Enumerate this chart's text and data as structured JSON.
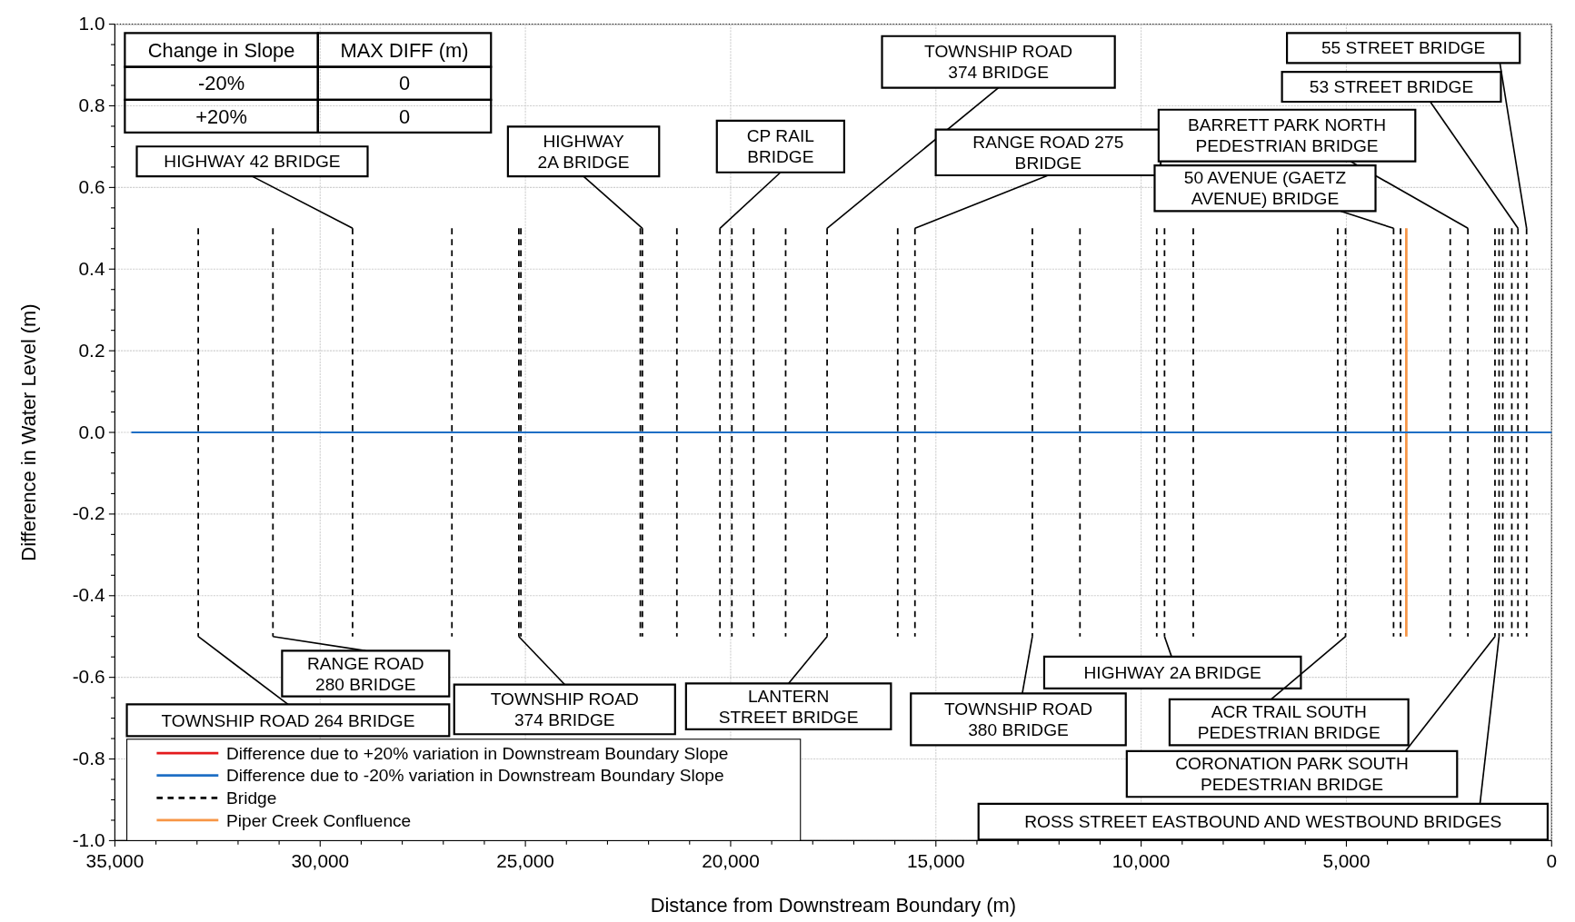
{
  "chart_data": {
    "type": "line",
    "xlabel": "Distance from Downstream Boundary (m)",
    "ylabel": "Difference in Water Level (m)",
    "xlim": [
      35000,
      0
    ],
    "ylim": [
      -1,
      1
    ],
    "xticks": [
      {
        "value": 35000,
        "label": "35,000"
      },
      {
        "value": 30000,
        "label": "30,000"
      },
      {
        "value": 25000,
        "label": "25,000"
      },
      {
        "value": 20000,
        "label": "20,000"
      },
      {
        "value": 15000,
        "label": "15,000"
      },
      {
        "value": 10000,
        "label": "10,000"
      },
      {
        "value": 5000,
        "label": "5,000"
      },
      {
        "value": 0,
        "label": "0"
      },
      {
        "value": 34000,
        "label": null
      },
      {
        "value": 33000,
        "label": null
      },
      {
        "value": 32000,
        "label": null
      },
      {
        "value": 31000,
        "label": null
      },
      {
        "value": 29000,
        "label": null
      },
      {
        "value": 28000,
        "label": null
      },
      {
        "value": 27000,
        "label": null
      },
      {
        "value": 26000,
        "label": null
      },
      {
        "value": 24000,
        "label": null
      },
      {
        "value": 23000,
        "label": null
      },
      {
        "value": 22000,
        "label": null
      },
      {
        "value": 21000,
        "label": null
      },
      {
        "value": 19000,
        "label": null
      },
      {
        "value": 18000,
        "label": null
      },
      {
        "value": 17000,
        "label": null
      },
      {
        "value": 16000,
        "label": null
      },
      {
        "value": 14000,
        "label": null
      },
      {
        "value": 13000,
        "label": null
      },
      {
        "value": 12000,
        "label": null
      },
      {
        "value": 11000,
        "label": null
      },
      {
        "value": 9000,
        "label": null
      },
      {
        "value": 8000,
        "label": null
      },
      {
        "value": 7000,
        "label": null
      },
      {
        "value": 6000,
        "label": null
      },
      {
        "value": 4000,
        "label": null
      },
      {
        "value": 3000,
        "label": null
      },
      {
        "value": 2000,
        "label": null
      },
      {
        "value": 1000,
        "label": null
      }
    ],
    "yticks": [
      {
        "value": -1,
        "label": "-1.0"
      },
      {
        "value": -0.8,
        "label": "-0.8"
      },
      {
        "value": -0.6,
        "label": "-0.6"
      },
      {
        "value": -0.4,
        "label": "-0.4"
      },
      {
        "value": -0.2,
        "label": "-0.2"
      },
      {
        "value": 0,
        "label": "0.0"
      },
      {
        "value": 0.2,
        "label": "0.2"
      },
      {
        "value": 0.4,
        "label": "0.4"
      },
      {
        "value": 0.6,
        "label": "0.6"
      },
      {
        "value": 0.8,
        "label": "0.8"
      },
      {
        "value": 1,
        "label": "1.0"
      },
      {
        "value": -0.95,
        "label": null
      },
      {
        "value": -0.9,
        "label": null
      },
      {
        "value": -0.85,
        "label": null
      },
      {
        "value": -0.75,
        "label": null
      },
      {
        "value": -0.7,
        "label": null
      },
      {
        "value": -0.65,
        "label": null
      },
      {
        "value": -0.55,
        "label": null
      },
      {
        "value": -0.5,
        "label": null
      },
      {
        "value": -0.45,
        "label": null
      },
      {
        "value": -0.35,
        "label": null
      },
      {
        "value": -0.3,
        "label": null
      },
      {
        "value": -0.25,
        "label": null
      },
      {
        "value": -0.15,
        "label": null
      },
      {
        "value": -0.1,
        "label": null
      },
      {
        "value": -0.05,
        "label": null
      },
      {
        "value": 0.05,
        "label": null
      },
      {
        "value": 0.1,
        "label": null
      },
      {
        "value": 0.15,
        "label": null
      },
      {
        "value": 0.25,
        "label": null
      },
      {
        "value": 0.3,
        "label": null
      },
      {
        "value": 0.35,
        "label": null
      },
      {
        "value": 0.45,
        "label": null
      },
      {
        "value": 0.5,
        "label": null
      },
      {
        "value": 0.55,
        "label": null
      },
      {
        "value": 0.65,
        "label": null
      },
      {
        "value": 0.7,
        "label": null
      },
      {
        "value": 0.75,
        "label": null
      },
      {
        "value": 0.85,
        "label": null
      },
      {
        "value": 0.9,
        "label": null
      },
      {
        "value": 0.95,
        "label": null
      }
    ],
    "x": [
      34600,
      0
    ],
    "grid": true,
    "legend": "bottom left",
    "line_style": "solid",
    "marker": "none",
    "series": [
      {
        "name": "Difference due to +20% variation in Downstream Boundary Slope",
        "color": "#e41a1c",
        "values": [
          null,
          null
        ]
      },
      {
        "name": "Difference due to -20% variation in Downstream Boundary Slope",
        "color": "#1f6fc5",
        "values": [
          0,
          0
        ]
      }
    ],
    "ref_lines": [
      {
        "axis": "x",
        "value": 32970,
        "label": "Bridge",
        "color": "#000000",
        "line_style": "dashed"
      },
      {
        "axis": "x",
        "value": 31150,
        "color": "#000000",
        "line_style": "dashed"
      },
      {
        "axis": "x",
        "value": 29210,
        "color": "#000000",
        "line_style": "dashed"
      },
      {
        "axis": "x",
        "value": 26790,
        "color": "#000000",
        "line_style": "dashed"
      },
      {
        "axis": "x",
        "value": 25160,
        "color": "#000000",
        "line_style": "dashed"
      },
      {
        "axis": "x",
        "value": 25110,
        "color": "#000000",
        "line_style": "dashed"
      },
      {
        "axis": "x",
        "value": 22200,
        "color": "#000000",
        "line_style": "dashed"
      },
      {
        "axis": "x",
        "value": 22150,
        "color": "#000000",
        "line_style": "dashed"
      },
      {
        "axis": "x",
        "value": 21310,
        "color": "#000000",
        "line_style": "dashed"
      },
      {
        "axis": "x",
        "value": 20260,
        "color": "#000000",
        "line_style": "dashed"
      },
      {
        "axis": "x",
        "value": 19970,
        "color": "#000000",
        "line_style": "dashed"
      },
      {
        "axis": "x",
        "value": 19440,
        "color": "#000000",
        "line_style": "dashed"
      },
      {
        "axis": "x",
        "value": 18660,
        "color": "#000000",
        "line_style": "dashed"
      },
      {
        "axis": "x",
        "value": 17650,
        "color": "#000000",
        "line_style": "dashed"
      },
      {
        "axis": "x",
        "value": 15930,
        "color": "#000000",
        "line_style": "dashed"
      },
      {
        "axis": "x",
        "value": 15510,
        "color": "#000000",
        "line_style": "dashed"
      },
      {
        "axis": "x",
        "value": 12650,
        "color": "#000000",
        "line_style": "dashed"
      },
      {
        "axis": "x",
        "value": 11490,
        "color": "#000000",
        "line_style": "dashed"
      },
      {
        "axis": "x",
        "value": 9620,
        "color": "#000000",
        "line_style": "dashed"
      },
      {
        "axis": "x",
        "value": 9430,
        "color": "#000000",
        "line_style": "dashed"
      },
      {
        "axis": "x",
        "value": 8730,
        "color": "#000000",
        "line_style": "dashed"
      },
      {
        "axis": "x",
        "value": 5210,
        "color": "#000000",
        "line_style": "dashed"
      },
      {
        "axis": "x",
        "value": 5020,
        "color": "#000000",
        "line_style": "dashed"
      },
      {
        "axis": "x",
        "value": 3850,
        "color": "#000000",
        "line_style": "dashed"
      },
      {
        "axis": "x",
        "value": 3680,
        "color": "#000000",
        "line_style": "dashed"
      },
      {
        "axis": "x",
        "value": 2470,
        "color": "#000000",
        "line_style": "dashed"
      },
      {
        "axis": "x",
        "value": 2040,
        "color": "#000000",
        "line_style": "dashed"
      },
      {
        "axis": "x",
        "value": 1380,
        "color": "#000000",
        "line_style": "dashed"
      },
      {
        "axis": "x",
        "value": 1280,
        "color": "#000000",
        "line_style": "dashed"
      },
      {
        "axis": "x",
        "value": 1190,
        "color": "#000000",
        "line_style": "dashed"
      },
      {
        "axis": "x",
        "value": 970,
        "color": "#000000",
        "line_style": "dashed"
      },
      {
        "axis": "x",
        "value": 820,
        "color": "#000000",
        "line_style": "dashed"
      },
      {
        "axis": "x",
        "value": 610,
        "color": "#000000",
        "line_style": "dashed"
      },
      {
        "axis": "x",
        "value": 3540,
        "label": "Piper Creek Confluence",
        "color": "#f79646",
        "line_style": "solid"
      }
    ],
    "annotations": [
      "Change in Slope",
      "MAX DIFF (m)",
      "-20%",
      "0",
      "+20%",
      "0",
      {
        "text": "HIGHWAY 42 BRIDGE",
        "x": 29210,
        "y": 0.5
      },
      {
        "text": "HIGHWAY\n2A BRIDGE",
        "x": 22150,
        "y": 0.5
      },
      {
        "text": "CP RAIL\nBRIDGE",
        "x": 20260,
        "y": 0.5
      },
      {
        "text": "TOWNSHIP ROAD\n374 BRIDGE",
        "x": 17650,
        "y": 0.5
      },
      {
        "text": "RANGE ROAD 275\nBRIDGE",
        "x": 15510,
        "y": 0.5
      },
      {
        "text": "BARRETT PARK NORTH\nPEDESTRIAN BRIDGE",
        "x": 2040,
        "y": 0.5
      },
      {
        "text": "50 AVENUE (GAETZ\nAVENUE) BRIDGE",
        "x": 3850,
        "y": 0.5
      },
      {
        "text": "55 STREET BRIDGE",
        "x": 610,
        "y": 0.5
      },
      {
        "text": "53 STREET BRIDGE",
        "x": 820,
        "y": 0.5
      },
      {
        "text": "TOWNSHIP ROAD 264 BRIDGE",
        "x": 32970,
        "y": -0.5
      },
      {
        "text": "RANGE ROAD\n280 BRIDGE",
        "x": 31150,
        "y": -0.5
      },
      {
        "text": "TOWNSHIP ROAD\n374 BRIDGE",
        "x": 25160,
        "y": -0.5
      },
      {
        "text": "LANTERN\nSTREET BRIDGE",
        "x": 17650,
        "y": -0.5
      },
      {
        "text": "TOWNSHIP ROAD\n380 BRIDGE",
        "x": 12650,
        "y": -0.5
      },
      {
        "text": "HIGHWAY 2A BRIDGE",
        "x": 9430,
        "y": -0.5
      },
      {
        "text": "ACR TRAIL SOUTH\nPEDESTRIAN BRIDGE",
        "x": 5020,
        "y": -0.5
      },
      {
        "text": "CORONATION PARK SOUTH\nPEDESTRIAN BRIDGE",
        "x": 1380,
        "y": -0.5
      },
      {
        "text": "ROSS STREET EASTBOUND AND WESTBOUND BRIDGES",
        "x": 1280,
        "y": -0.5
      }
    ]
  }
}
